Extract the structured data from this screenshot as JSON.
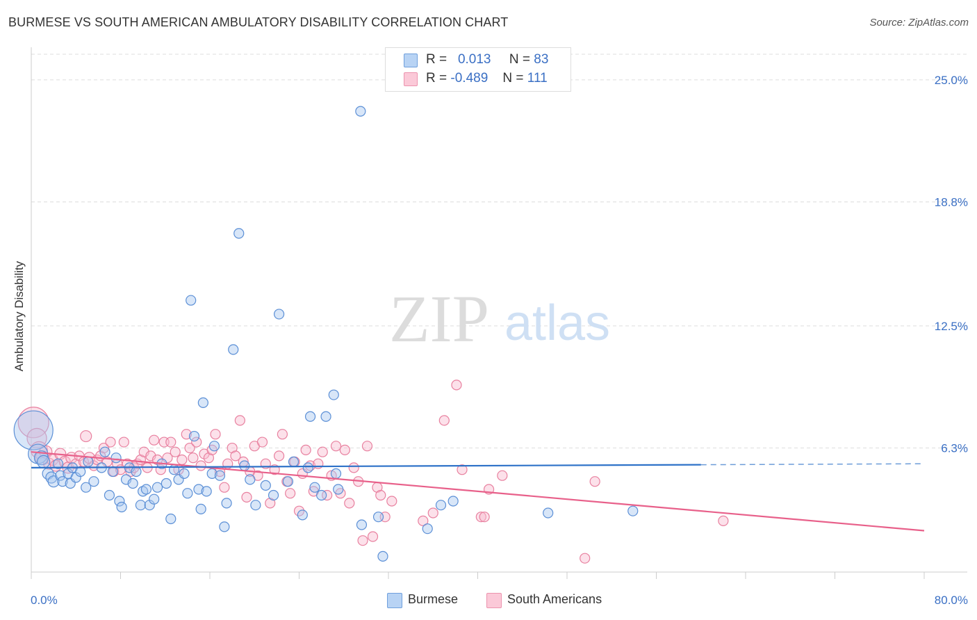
{
  "title": "BURMESE VS SOUTH AMERICAN AMBULATORY DISABILITY CORRELATION CHART",
  "source": "Source: ZipAtlas.com",
  "watermark": {
    "zip": "ZIP",
    "atlas": "atlas"
  },
  "legend": {
    "rows": [
      {
        "r_label": "R =",
        "r_value": "0.013",
        "n_label": "N =",
        "n_value": "83"
      },
      {
        "r_label": "R =",
        "r_value": "-0.489",
        "n_label": "N =",
        "n_value": "111"
      }
    ]
  },
  "bottom_legend": {
    "burmese": "Burmese",
    "south_americans": "South Americans"
  },
  "colors": {
    "blue_fill": "#a8c8f0",
    "blue_stroke": "#5b8fd6",
    "blue_line": "#2e72c8",
    "pink_fill": "#f8bcd0",
    "pink_stroke": "#e8809f",
    "pink_line": "#e8608a",
    "axis_text": "#3a6fc4",
    "grid": "#dddddd"
  },
  "chart_data": {
    "type": "scatter",
    "title": "BURMESE VS SOUTH AMERICAN AMBULATORY DISABILITY CORRELATION CHART",
    "xlabel": "",
    "ylabel": "Ambulatory Disability",
    "xlim": [
      0,
      80
    ],
    "ylim": [
      0,
      26.3
    ],
    "x_tick_labels": [
      "0.0%",
      "80.0%"
    ],
    "y_ticks": [
      {
        "value": 6.3,
        "label": "6.3%"
      },
      {
        "value": 12.5,
        "label": "12.5%"
      },
      {
        "value": 18.8,
        "label": "18.8%"
      },
      {
        "value": 25.0,
        "label": "25.0%"
      }
    ],
    "grid": true,
    "legend_position": "top-center",
    "series": [
      {
        "name": "Burmese",
        "r": 0.013,
        "n": 83,
        "trend": {
          "x": [
            0,
            60.0,
            80
          ],
          "y": [
            5.3,
            5.45,
            5.5
          ],
          "solid_until": 60.0
        },
        "points": [
          [
            0.2,
            7.2,
            28
          ],
          [
            0.6,
            6.0,
            14
          ],
          [
            0.9,
            5.8,
            10
          ],
          [
            1.1,
            5.6,
            9
          ],
          [
            1.5,
            5.0,
            8
          ],
          [
            1.8,
            4.8,
            8
          ],
          [
            2.0,
            4.6,
            8
          ],
          [
            2.4,
            5.5,
            7
          ],
          [
            2.6,
            4.9,
            7
          ],
          [
            2.8,
            4.6,
            7
          ],
          [
            3.3,
            5.0,
            7
          ],
          [
            3.5,
            4.5,
            7
          ],
          [
            3.7,
            5.3,
            7
          ],
          [
            4.0,
            4.8,
            7
          ],
          [
            4.4,
            5.1,
            7
          ],
          [
            4.9,
            4.3,
            7
          ],
          [
            5.1,
            5.6,
            7
          ],
          [
            5.6,
            4.6,
            7
          ],
          [
            6.3,
            5.3,
            7
          ],
          [
            6.6,
            6.1,
            7
          ],
          [
            7.0,
            3.9,
            7
          ],
          [
            7.3,
            5.1,
            7
          ],
          [
            7.6,
            5.8,
            7
          ],
          [
            7.9,
            3.6,
            7
          ],
          [
            8.1,
            3.3,
            7
          ],
          [
            8.5,
            4.7,
            7
          ],
          [
            8.8,
            5.3,
            7
          ],
          [
            9.1,
            4.5,
            7
          ],
          [
            9.4,
            5.1,
            7
          ],
          [
            9.8,
            3.4,
            7
          ],
          [
            10.0,
            4.1,
            7
          ],
          [
            10.3,
            4.2,
            7
          ],
          [
            10.6,
            3.4,
            7
          ],
          [
            11.0,
            3.7,
            7
          ],
          [
            11.3,
            4.3,
            7
          ],
          [
            11.7,
            5.5,
            7
          ],
          [
            12.1,
            4.5,
            7
          ],
          [
            12.5,
            2.7,
            7
          ],
          [
            12.8,
            5.2,
            7
          ],
          [
            13.2,
            4.7,
            7
          ],
          [
            13.7,
            5.0,
            7
          ],
          [
            14.0,
            4.0,
            7
          ],
          [
            14.3,
            13.8,
            7
          ],
          [
            14.6,
            6.9,
            7
          ],
          [
            15.0,
            4.2,
            7
          ],
          [
            15.2,
            3.2,
            7
          ],
          [
            15.4,
            8.6,
            7
          ],
          [
            15.7,
            4.1,
            7
          ],
          [
            16.2,
            5.0,
            7
          ],
          [
            16.4,
            6.4,
            7
          ],
          [
            16.9,
            4.9,
            7
          ],
          [
            17.3,
            2.3,
            7
          ],
          [
            17.5,
            3.5,
            7
          ],
          [
            18.1,
            11.3,
            7
          ],
          [
            18.6,
            17.2,
            7
          ],
          [
            19.1,
            5.4,
            7
          ],
          [
            19.6,
            4.7,
            7
          ],
          [
            20.1,
            3.4,
            7
          ],
          [
            21.0,
            4.4,
            7
          ],
          [
            21.7,
            3.9,
            7
          ],
          [
            22.2,
            13.1,
            7
          ],
          [
            23.0,
            4.6,
            7
          ],
          [
            23.5,
            5.6,
            7
          ],
          [
            24.3,
            2.9,
            7
          ],
          [
            24.8,
            5.3,
            7
          ],
          [
            25.0,
            7.9,
            7
          ],
          [
            25.4,
            4.3,
            7
          ],
          [
            26.0,
            3.9,
            7
          ],
          [
            26.4,
            7.9,
            7
          ],
          [
            27.1,
            9.0,
            7
          ],
          [
            27.3,
            5.0,
            7
          ],
          [
            27.5,
            4.2,
            7
          ],
          [
            29.5,
            23.4,
            7
          ],
          [
            29.6,
            2.4,
            7
          ],
          [
            31.1,
            2.8,
            7
          ],
          [
            31.5,
            0.8,
            7
          ],
          [
            35.5,
            2.2,
            7
          ],
          [
            36.7,
            3.4,
            7
          ],
          [
            37.8,
            3.6,
            7
          ],
          [
            46.3,
            3.0,
            7
          ],
          [
            53.9,
            3.1,
            7
          ]
        ]
      },
      {
        "name": "South Americans",
        "r": -0.489,
        "n": 111,
        "trend": {
          "x": [
            0,
            80
          ],
          "y": [
            6.1,
            2.1
          ]
        },
        "points": [
          [
            0.2,
            7.6,
            22
          ],
          [
            0.5,
            6.8,
            14
          ],
          [
            0.7,
            6.2,
            12
          ],
          [
            1.0,
            5.8,
            10
          ],
          [
            1.3,
            6.1,
            9
          ],
          [
            1.6,
            5.5,
            8
          ],
          [
            1.9,
            5.7,
            8
          ],
          [
            2.2,
            5.4,
            8
          ],
          [
            2.6,
            6.0,
            8
          ],
          [
            3.0,
            5.6,
            8
          ],
          [
            3.3,
            5.3,
            8
          ],
          [
            3.6,
            5.8,
            8
          ],
          [
            4.0,
            5.5,
            7
          ],
          [
            4.3,
            5.9,
            7
          ],
          [
            4.7,
            5.6,
            7
          ],
          [
            4.9,
            6.9,
            8
          ],
          [
            5.2,
            5.8,
            8
          ],
          [
            5.6,
            5.4,
            7
          ],
          [
            5.9,
            5.7,
            7
          ],
          [
            6.2,
            5.9,
            7
          ],
          [
            6.5,
            6.3,
            7
          ],
          [
            6.8,
            5.6,
            7
          ],
          [
            7.1,
            6.6,
            7
          ],
          [
            7.4,
            5.1,
            7
          ],
          [
            7.7,
            5.5,
            7
          ],
          [
            8.0,
            5.2,
            7
          ],
          [
            8.3,
            6.6,
            7
          ],
          [
            8.6,
            5.5,
            7
          ],
          [
            8.9,
            5.1,
            7
          ],
          [
            9.2,
            5.3,
            7
          ],
          [
            9.5,
            5.5,
            7
          ],
          [
            9.8,
            5.7,
            7
          ],
          [
            10.1,
            6.1,
            7
          ],
          [
            10.4,
            5.3,
            7
          ],
          [
            10.7,
            5.9,
            7
          ],
          [
            11.0,
            6.7,
            7
          ],
          [
            11.3,
            5.7,
            7
          ],
          [
            11.6,
            5.2,
            7
          ],
          [
            11.9,
            6.6,
            7
          ],
          [
            12.2,
            5.8,
            7
          ],
          [
            12.5,
            6.6,
            7
          ],
          [
            12.9,
            6.1,
            7
          ],
          [
            13.2,
            5.2,
            7
          ],
          [
            13.5,
            5.7,
            7
          ],
          [
            13.9,
            7.0,
            7
          ],
          [
            14.2,
            6.3,
            7
          ],
          [
            14.5,
            5.8,
            7
          ],
          [
            14.8,
            6.6,
            7
          ],
          [
            15.2,
            5.4,
            7
          ],
          [
            15.5,
            6.0,
            7
          ],
          [
            15.9,
            5.8,
            7
          ],
          [
            16.2,
            6.2,
            7
          ],
          [
            16.5,
            7.0,
            7
          ],
          [
            16.9,
            5.1,
            7
          ],
          [
            17.3,
            4.3,
            7
          ],
          [
            17.6,
            5.5,
            7
          ],
          [
            18.0,
            6.3,
            7
          ],
          [
            18.3,
            5.9,
            7
          ],
          [
            18.7,
            7.7,
            7
          ],
          [
            19.0,
            5.6,
            7
          ],
          [
            19.3,
            3.8,
            7
          ],
          [
            19.6,
            5.1,
            7
          ],
          [
            20.0,
            6.4,
            7
          ],
          [
            20.3,
            4.9,
            7
          ],
          [
            20.7,
            6.6,
            7
          ],
          [
            21.0,
            5.5,
            7
          ],
          [
            21.4,
            3.5,
            7
          ],
          [
            21.8,
            5.2,
            7
          ],
          [
            22.2,
            5.9,
            7
          ],
          [
            22.5,
            7.0,
            7
          ],
          [
            22.9,
            4.6,
            7
          ],
          [
            23.2,
            4.0,
            7
          ],
          [
            23.6,
            5.6,
            7
          ],
          [
            24.0,
            3.1,
            7
          ],
          [
            24.3,
            5.0,
            7
          ],
          [
            24.6,
            6.2,
            7
          ],
          [
            25.0,
            5.4,
            7
          ],
          [
            25.3,
            4.1,
            7
          ],
          [
            25.7,
            5.5,
            7
          ],
          [
            26.1,
            6.1,
            7
          ],
          [
            26.5,
            3.9,
            7
          ],
          [
            26.9,
            4.9,
            7
          ],
          [
            27.3,
            6.4,
            7
          ],
          [
            27.7,
            4.0,
            7
          ],
          [
            28.1,
            6.2,
            7
          ],
          [
            28.5,
            3.5,
            7
          ],
          [
            28.9,
            5.3,
            7
          ],
          [
            29.3,
            4.6,
            7
          ],
          [
            29.7,
            1.6,
            7
          ],
          [
            30.1,
            6.4,
            7
          ],
          [
            30.6,
            1.8,
            7
          ],
          [
            31.0,
            4.3,
            7
          ],
          [
            31.3,
            3.9,
            7
          ],
          [
            31.7,
            2.8,
            7
          ],
          [
            32.3,
            3.6,
            7
          ],
          [
            35.1,
            2.6,
            7
          ],
          [
            36.0,
            3.0,
            7
          ],
          [
            37.0,
            7.7,
            7
          ],
          [
            38.1,
            9.5,
            7
          ],
          [
            38.6,
            5.2,
            7
          ],
          [
            40.3,
            2.8,
            7
          ],
          [
            40.6,
            2.8,
            7
          ],
          [
            41.0,
            4.2,
            7
          ],
          [
            42.2,
            4.9,
            7
          ],
          [
            49.6,
            0.7,
            7
          ],
          [
            50.5,
            4.6,
            7
          ],
          [
            62.0,
            2.6,
            7
          ]
        ]
      }
    ]
  }
}
